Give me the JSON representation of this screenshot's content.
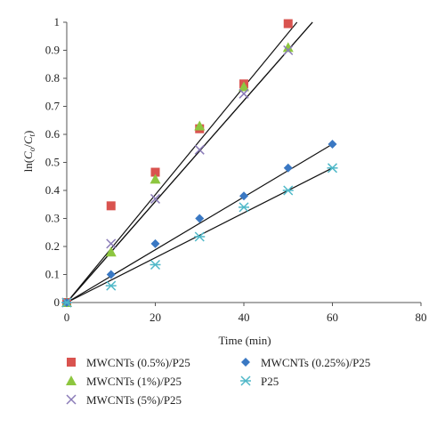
{
  "chart_data": {
    "type": "scatter",
    "xlabel": "Time (min)",
    "ylabel_parts": {
      "ln": "ln(",
      "c0": "C",
      "c0_sub": "o",
      "slash": "/",
      "ct": "C",
      "ct_sub": "t",
      "close": ")"
    },
    "xlim": [
      0,
      80
    ],
    "ylim": [
      0,
      1
    ],
    "xticks": [
      0,
      20,
      40,
      60,
      80
    ],
    "yticks": [
      0,
      0.1,
      0.2,
      0.3,
      0.4,
      0.5,
      0.6,
      0.7,
      0.8,
      0.9,
      1
    ],
    "grid": false,
    "legend_position": "bottom",
    "series": [
      {
        "name": "MWCNTs (0.5%)/P25",
        "marker": "square",
        "color": "#d9534f",
        "x": [
          0,
          10,
          20,
          30,
          40,
          50
        ],
        "y": [
          0,
          0.345,
          0.465,
          0.62,
          0.78,
          0.995
        ],
        "trend": {
          "x": [
            0,
            52
          ],
          "y": [
            0,
            1.0
          ]
        }
      },
      {
        "name": "MWCNTs (1%)/P25",
        "marker": "triangle",
        "color": "#8dc63f",
        "x": [
          0,
          10,
          20,
          30,
          40,
          50
        ],
        "y": [
          0,
          0.18,
          0.44,
          0.63,
          0.77,
          0.91
        ],
        "trend": {
          "x": [
            0,
            55.5
          ],
          "y": [
            0,
            1.0
          ]
        }
      },
      {
        "name": "MWCNTs (5%)/P25",
        "marker": "x",
        "color": "#8a7bb8",
        "x": [
          0,
          10,
          20,
          30,
          40,
          50
        ],
        "y": [
          0,
          0.21,
          0.37,
          0.545,
          0.745,
          0.9
        ],
        "trend": {
          "x": [
            0,
            55.5
          ],
          "y": [
            0,
            1.0
          ]
        }
      },
      {
        "name": "MWCNTs (0.25%)/P25",
        "marker": "diamond",
        "color": "#3a78c3",
        "x": [
          0,
          10,
          20,
          30,
          40,
          50,
          60
        ],
        "y": [
          0,
          0.1,
          0.21,
          0.3,
          0.38,
          0.48,
          0.565
        ],
        "trend": {
          "x": [
            0,
            60
          ],
          "y": [
            0,
            0.565
          ]
        }
      },
      {
        "name": "P25",
        "marker": "asterisk",
        "color": "#4fb8c8",
        "x": [
          0,
          10,
          20,
          30,
          40,
          50,
          60
        ],
        "y": [
          0,
          0.06,
          0.135,
          0.235,
          0.34,
          0.4,
          0.48
        ],
        "trend": {
          "x": [
            0,
            60
          ],
          "y": [
            0,
            0.48
          ]
        }
      }
    ]
  }
}
